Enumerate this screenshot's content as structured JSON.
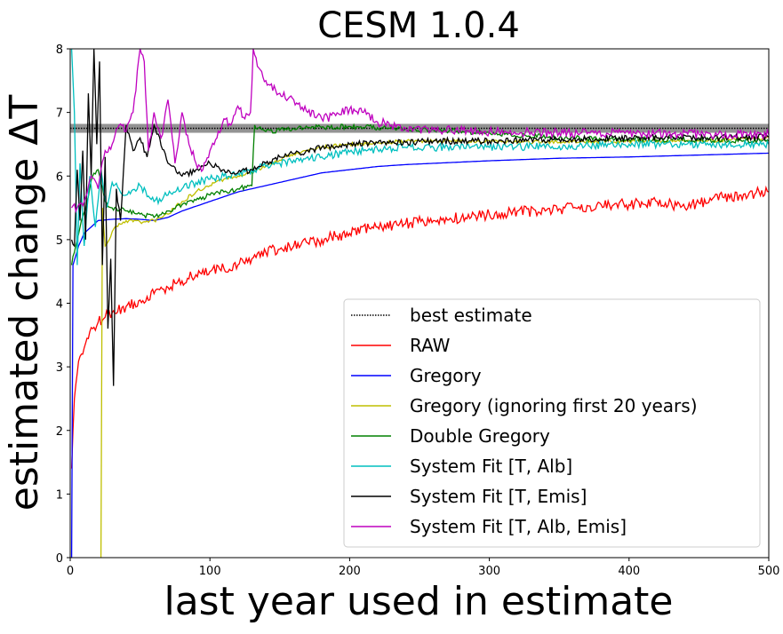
{
  "chart_data": {
    "type": "line",
    "title": "CESM 1.0.4",
    "xlabel": "last year used in estimate",
    "ylabel": "estimated change ΔT",
    "xlim": [
      0,
      500
    ],
    "ylim": [
      0,
      8
    ],
    "xticks": [
      "0",
      "100",
      "200",
      "300",
      "400",
      "500"
    ],
    "yticks": [
      "0",
      "1",
      "2",
      "3",
      "4",
      "5",
      "6",
      "7",
      "8"
    ],
    "grid": false,
    "legend_position": "lower-right",
    "best_estimate": {
      "name": "best estimate",
      "value": 6.75,
      "band": [
        6.68,
        6.82
      ],
      "color": "#000000"
    },
    "series": [
      {
        "name": "RAW",
        "color": "#ff0000",
        "x": [
          1,
          3,
          5,
          8,
          12,
          16,
          20,
          25,
          30,
          40,
          50,
          60,
          70,
          80,
          90,
          100,
          110,
          120,
          130,
          140,
          150,
          160,
          170,
          180,
          190,
          200,
          220,
          240,
          260,
          280,
          300,
          320,
          340,
          360,
          380,
          400,
          420,
          440,
          460,
          480,
          500
        ],
        "y": [
          1.4,
          2.5,
          2.9,
          3.2,
          3.45,
          3.6,
          3.7,
          3.78,
          3.85,
          3.95,
          4.05,
          4.15,
          4.25,
          4.35,
          4.45,
          4.5,
          4.55,
          4.6,
          4.7,
          4.8,
          4.85,
          4.9,
          4.95,
          5.0,
          5.05,
          5.1,
          5.2,
          5.25,
          5.3,
          5.35,
          5.4,
          5.45,
          5.45,
          5.5,
          5.55,
          5.55,
          5.6,
          5.5,
          5.65,
          5.7,
          5.75
        ],
        "noise": 0.09
      },
      {
        "name": "Gregory",
        "color": "#0000ff",
        "x": [
          1,
          2,
          4,
          6,
          10,
          20,
          30,
          40,
          50,
          60,
          70,
          80,
          100,
          120,
          140,
          160,
          180,
          200,
          220,
          240,
          260,
          280,
          300,
          350,
          400,
          450,
          500
        ],
        "y": [
          0.0,
          4.6,
          4.75,
          4.9,
          5.1,
          5.3,
          5.32,
          5.33,
          5.32,
          5.3,
          5.35,
          5.45,
          5.6,
          5.75,
          5.85,
          5.95,
          6.05,
          6.1,
          6.15,
          6.18,
          6.2,
          6.22,
          6.24,
          6.28,
          6.3,
          6.33,
          6.36
        ],
        "noise": 0.0
      },
      {
        "name": "Gregory (ignoring first 20 years)",
        "color": "#bfbf00",
        "x": [
          22,
          23,
          25,
          28,
          32,
          40,
          50,
          60,
          70,
          80,
          90,
          100,
          110,
          120,
          130,
          140,
          150,
          160,
          180,
          200,
          220,
          240,
          260,
          300,
          350,
          400,
          450,
          500
        ],
        "y": [
          0.0,
          5.5,
          4.9,
          5.0,
          5.2,
          5.3,
          5.28,
          5.3,
          5.4,
          5.6,
          5.75,
          5.85,
          5.95,
          6.0,
          6.05,
          6.15,
          6.25,
          6.35,
          6.45,
          6.5,
          6.52,
          6.55,
          6.55,
          6.55,
          6.53,
          6.55,
          6.55,
          6.6
        ],
        "noise": 0.03
      },
      {
        "name": "Double Gregory",
        "color": "#008000",
        "x": [
          1,
          3,
          5,
          8,
          12,
          16,
          20,
          25,
          30,
          40,
          50,
          60,
          70,
          80,
          90,
          100,
          110,
          120,
          130,
          132,
          140,
          150,
          160,
          180,
          200,
          220,
          240,
          260,
          300,
          350,
          400,
          450,
          500
        ],
        "y": [
          4.6,
          4.8,
          5.0,
          5.3,
          5.6,
          6.0,
          6.1,
          5.6,
          5.5,
          5.45,
          5.4,
          5.35,
          5.45,
          5.55,
          5.62,
          5.7,
          5.75,
          5.8,
          5.85,
          6.8,
          6.7,
          6.72,
          6.75,
          6.77,
          6.78,
          6.76,
          6.74,
          6.72,
          6.68,
          6.6,
          6.58,
          6.57,
          6.55
        ],
        "noise": 0.04
      },
      {
        "name": "System Fit [T, Alb]",
        "color": "#00bfbf",
        "x": [
          1,
          3,
          5,
          7,
          10,
          14,
          18,
          22,
          26,
          30,
          40,
          50,
          60,
          70,
          80,
          90,
          100,
          110,
          120,
          130,
          140,
          150,
          160,
          180,
          200,
          220,
          240,
          260,
          300,
          350,
          400,
          450,
          500
        ],
        "y": [
          8.0,
          7.0,
          4.6,
          6.2,
          4.9,
          6.0,
          5.2,
          6.1,
          5.5,
          5.9,
          5.7,
          5.85,
          5.6,
          5.7,
          5.8,
          5.9,
          5.95,
          6.0,
          6.05,
          6.1,
          6.15,
          6.2,
          6.25,
          6.3,
          6.38,
          6.42,
          6.45,
          6.45,
          6.45,
          6.47,
          6.5,
          6.5,
          6.5
        ],
        "noise": 0.06
      },
      {
        "name": "System Fit [T, Emis]",
        "color": "#000000",
        "x": [
          1,
          3,
          5,
          7,
          9,
          11,
          13,
          15,
          17,
          19,
          21,
          23,
          25,
          27,
          29,
          31,
          33,
          36,
          40,
          45,
          50,
          55,
          60,
          70,
          80,
          90,
          100,
          110,
          120,
          130,
          140,
          150,
          160,
          180,
          200,
          220,
          240,
          260,
          300,
          350,
          400,
          450,
          500
        ],
        "y": [
          5.0,
          4.9,
          6.1,
          5.3,
          6.4,
          5.0,
          7.3,
          6.0,
          8.0,
          6.5,
          7.8,
          4.6,
          6.3,
          3.6,
          4.7,
          2.7,
          5.8,
          5.3,
          6.8,
          6.4,
          6.6,
          6.3,
          6.8,
          6.2,
          6.0,
          6.1,
          6.2,
          6.1,
          6.05,
          6.1,
          6.2,
          6.3,
          6.35,
          6.45,
          6.5,
          6.52,
          6.53,
          6.55,
          6.55,
          6.58,
          6.6,
          6.6,
          6.62
        ],
        "noise": 0.05
      },
      {
        "name": "System Fit [T, Alb, Emis]",
        "color": "#bf00bf",
        "x": [
          1,
          5,
          10,
          15,
          20,
          25,
          30,
          35,
          40,
          45,
          50,
          53,
          56,
          60,
          65,
          70,
          75,
          80,
          85,
          90,
          95,
          100,
          105,
          110,
          115,
          120,
          125,
          129,
          131,
          135,
          140,
          150,
          160,
          170,
          180,
          190,
          200,
          210,
          220,
          230,
          240,
          260,
          300,
          350,
          400,
          450,
          500
        ],
        "y": [
          5.5,
          5.5,
          5.6,
          6.0,
          5.8,
          6.4,
          6.5,
          6.8,
          6.7,
          7.0,
          8.0,
          7.8,
          6.4,
          7.0,
          6.6,
          7.2,
          6.2,
          7.0,
          6.5,
          6.2,
          6.1,
          6.4,
          6.6,
          6.9,
          6.8,
          7.1,
          6.9,
          7.0,
          8.0,
          7.7,
          7.5,
          7.3,
          7.2,
          7.0,
          6.9,
          6.95,
          7.05,
          7.0,
          6.85,
          6.8,
          6.75,
          6.73,
          6.7,
          6.68,
          6.67,
          6.66,
          6.65
        ],
        "noise": 0.07
      }
    ]
  }
}
